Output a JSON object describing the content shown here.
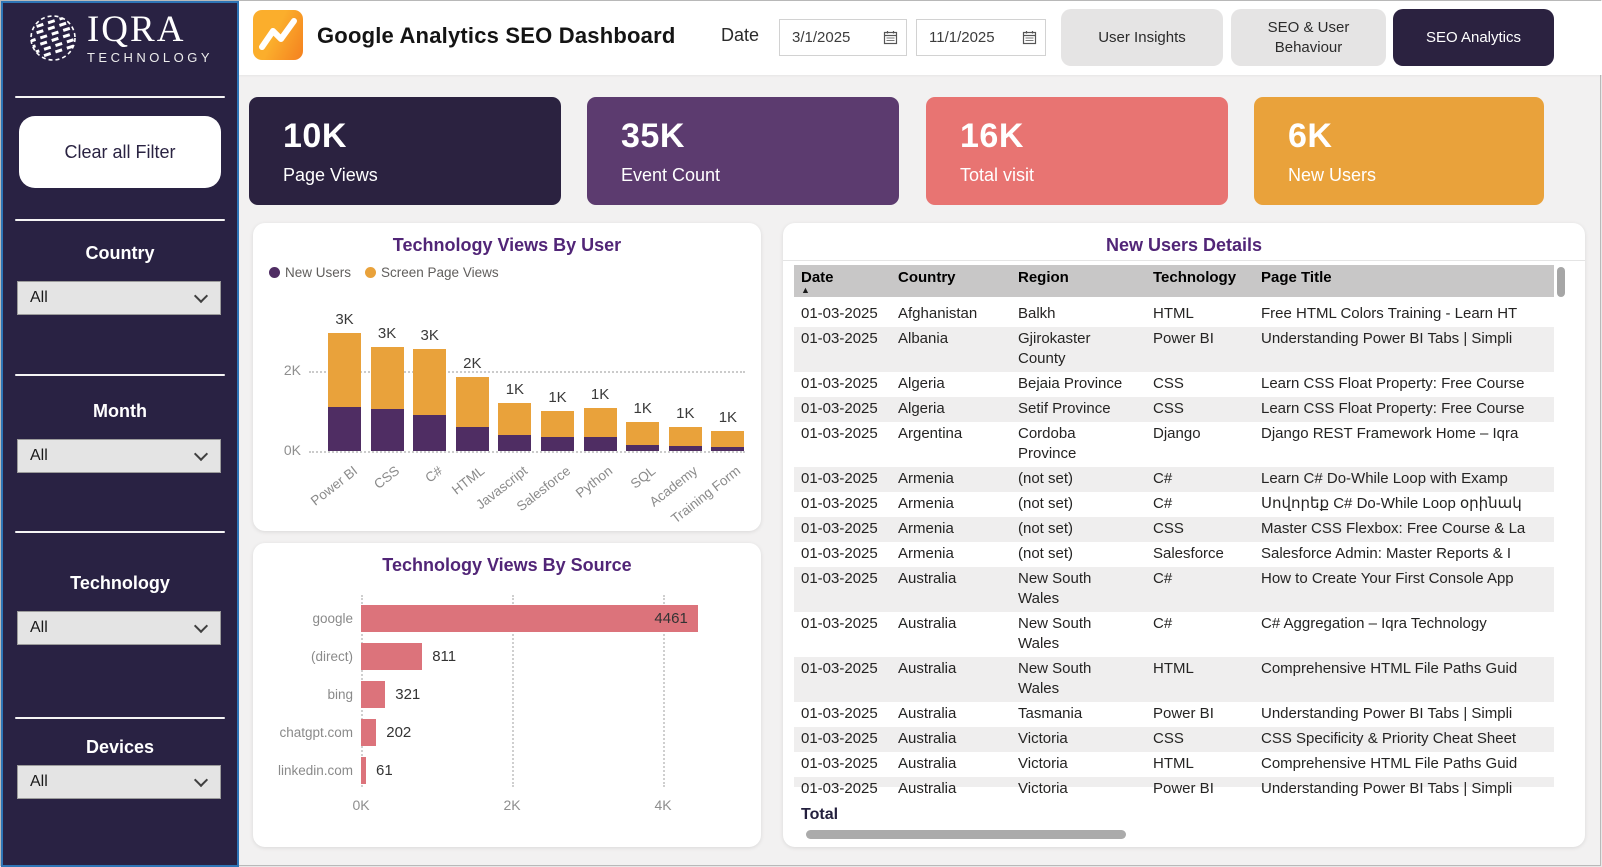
{
  "sidebar": {
    "brand": {
      "name": "IQRA",
      "subtitle": "TECHNOLOGY"
    },
    "clear_button": "Clear all Filter",
    "filters": [
      {
        "label": "Country",
        "value": "All"
      },
      {
        "label": "Month",
        "value": "All"
      },
      {
        "label": "Technology",
        "value": "All"
      },
      {
        "label": "Devices",
        "value": "All"
      }
    ]
  },
  "header": {
    "title": "Google Analytics SEO Dashboard",
    "date_label": "Date",
    "date_from": "3/1/2025",
    "date_to": "11/1/2025",
    "tabs": [
      {
        "label": "User Insights",
        "active": false
      },
      {
        "label": "SEO & User Behaviour",
        "active": false
      },
      {
        "label": "SEO Analytics",
        "active": true
      }
    ]
  },
  "kpis": [
    {
      "value": "10K",
      "label": "Page Views",
      "color": "#2B2240"
    },
    {
      "value": "35K",
      "label": "Event Count",
      "color": "#5C3B6F"
    },
    {
      "value": "16K",
      "label": "Total visit",
      "color": "#E87472"
    },
    {
      "value": "6K",
      "label": "New Users",
      "color": "#E9A23B"
    }
  ],
  "chart_data": [
    {
      "type": "bar",
      "stacked": true,
      "title": "Technology Views By User",
      "categories": [
        "Power BI",
        "CSS",
        "C#",
        "HTML",
        "Javascript",
        "Salesforce",
        "Python",
        "SQL",
        "Academy",
        "Training Form"
      ],
      "series": [
        {
          "name": "New Users",
          "color": "#4F2D63",
          "values": [
            1100,
            1050,
            900,
            600,
            400,
            350,
            350,
            150,
            130,
            110
          ]
        },
        {
          "name": "Screen Page Views",
          "color": "#E9A23B",
          "values": [
            1850,
            1550,
            1650,
            1250,
            800,
            650,
            730,
            580,
            470,
            390
          ]
        }
      ],
      "total_labels": [
        "3K",
        "3K",
        "3K",
        "2K",
        "1K",
        "1K",
        "1K",
        "1K",
        "1K",
        "1K"
      ],
      "y_ticks": [
        {
          "label": "0K",
          "value": 0
        },
        {
          "label": "2K",
          "value": 2000
        }
      ],
      "ylim": [
        0,
        3200
      ],
      "grid": "dotted-horizontal",
      "legend_position": "top-left"
    },
    {
      "type": "bar",
      "orientation": "horizontal",
      "title": "Technology Views By Source",
      "categories": [
        "google",
        "(direct)",
        "bing",
        "chatgpt.com",
        "linkedin.com"
      ],
      "values": [
        4461,
        811,
        321,
        202,
        61
      ],
      "bar_color": "#DC737B",
      "x_ticks": [
        {
          "label": "0K",
          "value": 0
        },
        {
          "label": "2K",
          "value": 2000
        },
        {
          "label": "4K",
          "value": 4000
        }
      ],
      "xlim": [
        0,
        4800
      ],
      "grid": "dotted-vertical"
    }
  ],
  "table": {
    "title": "New Users Details",
    "columns": [
      "Date",
      "Country",
      "Region",
      "Technology",
      "Page Title"
    ],
    "sort_column": "Date",
    "sort_icon": "▲",
    "rows": [
      [
        "01-03-2025",
        "Afghanistan",
        "Balkh",
        "HTML",
        "Free HTML Colors Training - Learn HT"
      ],
      [
        "01-03-2025",
        "Albania",
        "Gjirokaster County",
        "Power BI",
        "Understanding Power BI Tabs | Simpli"
      ],
      [
        "01-03-2025",
        "Algeria",
        "Bejaia Province",
        "CSS",
        "Learn CSS Float Property: Free Course"
      ],
      [
        "01-03-2025",
        "Algeria",
        "Setif Province",
        "CSS",
        "Learn CSS Float Property: Free Course"
      ],
      [
        "01-03-2025",
        "Argentina",
        "Cordoba Province",
        "Django",
        "Django REST Framework Home – Iqra"
      ],
      [
        "01-03-2025",
        "Armenia",
        "(not set)",
        "C#",
        "Learn C# Do-While Loop with Examp"
      ],
      [
        "01-03-2025",
        "Armenia",
        "(not set)",
        "C#",
        "Սովորեք C# Do-While Loop օրինակ"
      ],
      [
        "01-03-2025",
        "Armenia",
        "(not set)",
        "CSS",
        "Master CSS Flexbox: Free Course & La"
      ],
      [
        "01-03-2025",
        "Armenia",
        "(not set)",
        "Salesforce",
        "Salesforce Admin: Master Reports & I"
      ],
      [
        "01-03-2025",
        "Australia",
        "New South Wales",
        "C#",
        "How to Create Your First Console App"
      ],
      [
        "01-03-2025",
        "Australia",
        "New South Wales",
        "C#",
        "C# Aggregation – Iqra Technology"
      ],
      [
        "01-03-2025",
        "Australia",
        "New South Wales",
        "HTML",
        "Comprehensive HTML File Paths Guid"
      ],
      [
        "01-03-2025",
        "Australia",
        "Tasmania",
        "Power BI",
        "Understanding Power BI Tabs | Simpli"
      ],
      [
        "01-03-2025",
        "Australia",
        "Victoria",
        "CSS",
        "CSS Specificity & Priority Cheat Sheet"
      ],
      [
        "01-03-2025",
        "Australia",
        "Victoria",
        "HTML",
        "Comprehensive HTML File Paths Guid"
      ]
    ],
    "clipped_row": [
      "01-03-2025",
      "Australia",
      "Victoria",
      "Power BI",
      "Understanding Power BI Tabs | Simpli"
    ],
    "total_label": "Total"
  }
}
